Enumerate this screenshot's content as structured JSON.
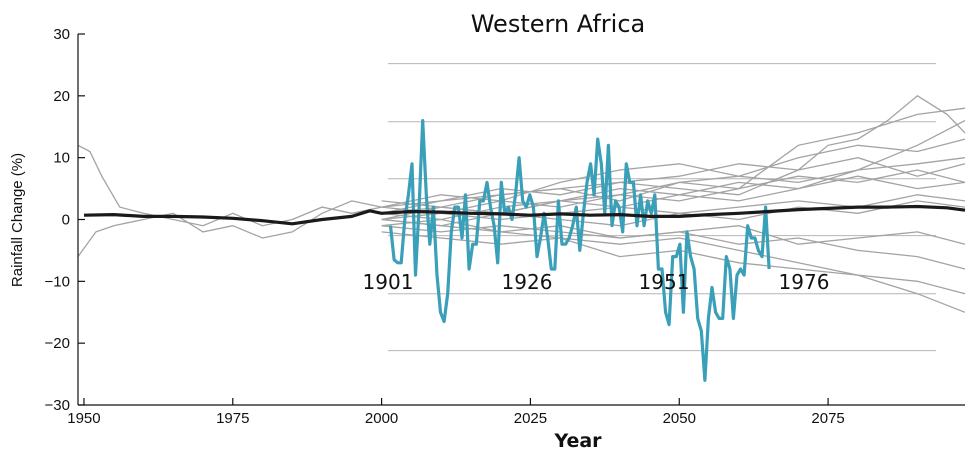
{
  "chart_data": {
    "type": "line",
    "title": "Western Africa",
    "xlabel": "Year",
    "ylabel": "Rainfall Change (%)",
    "xlim": [
      1949,
      2098
    ],
    "ylim": [
      -30,
      30
    ],
    "x_ticks": [
      1950,
      1975,
      2000,
      2025,
      2050,
      2075
    ],
    "y_ticks": [
      30,
      20,
      10,
      0,
      -10,
      -20,
      -30
    ],
    "x_tick_labels": [
      "1950",
      "1975",
      "2000",
      "2025",
      "2050",
      "2075"
    ],
    "y_tick_labels": [
      "30",
      "20",
      "10",
      "0",
      "−10",
      "−20",
      "−30"
    ],
    "observed_axis_labels": [
      "1901",
      "1926",
      "1951",
      "1976"
    ],
    "observed_gridlines_y": [
      25.2,
      15.8,
      6.6,
      -2.6,
      -12.0,
      -21.2
    ],
    "colors": {
      "model": "#a3a3a3",
      "mean": "#1a1a1a",
      "observed": "#3a9fb8",
      "grid": "#b5b5b5",
      "axis": "#111111"
    },
    "series": [
      {
        "name": "",
        "role": "observed",
        "x_start": 2001.5,
        "x_step": 0.6,
        "values": [
          -1,
          -6.5,
          -7,
          -7,
          0,
          4,
          9,
          -9,
          2,
          16,
          4,
          -4,
          2,
          -9,
          -15,
          -16.5,
          -12,
          -2,
          2,
          2,
          -3,
          4,
          -8,
          -4,
          -4,
          3,
          3,
          6,
          2,
          -1,
          -7,
          6,
          1,
          2,
          0,
          4,
          10,
          3,
          2,
          4,
          2,
          -6,
          -3,
          1,
          -3,
          -8,
          -8,
          3,
          -4,
          -4,
          -3,
          -1,
          2,
          -5,
          1,
          6,
          9,
          4,
          13,
          9,
          1,
          12,
          -1,
          3,
          2,
          -2,
          9,
          6,
          6,
          -1,
          4,
          -1,
          3,
          1,
          4,
          -8,
          -8,
          -15,
          -17,
          -6,
          -6,
          -4,
          -15,
          -2,
          -6,
          -8,
          -16,
          -18,
          -26,
          -16,
          -11,
          -15,
          -16,
          -16,
          -6,
          -8,
          -16,
          -9,
          -8,
          -9,
          -1,
          -3,
          -3,
          -5,
          -6,
          2,
          -8
        ]
      },
      {
        "name": "",
        "role": "mean",
        "x": [
          1950,
          1955,
          1960,
          1965,
          1970,
          1975,
          1980,
          1985,
          1990,
          1995,
          1998,
          2000,
          2005,
          2010,
          2015,
          2020,
          2025,
          2030,
          2035,
          2040,
          2045,
          2050,
          2055,
          2060,
          2065,
          2070,
          2075,
          2080,
          2085,
          2090,
          2095,
          2098
        ],
        "values": [
          0.7,
          0.8,
          0.5,
          0.5,
          0.4,
          0.2,
          -0.2,
          -0.7,
          0,
          0.5,
          1.4,
          1,
          1.3,
          1.2,
          1,
          0.9,
          0.7,
          0.9,
          0.7,
          0.8,
          0.5,
          0.5,
          0.8,
          1,
          1.3,
          1.6,
          1.8,
          2,
          2,
          2.1,
          1.9,
          1.5
        ]
      }
    ],
    "model_runs": [
      {
        "x": [
          1949,
          1951,
          1953,
          1956,
          1960,
          1965,
          1970,
          1975,
          1980,
          1985,
          1990,
          1995,
          2000
        ],
        "values": [
          12,
          11,
          7,
          2,
          1,
          0,
          -1,
          1,
          -1,
          0,
          2,
          1,
          2
        ]
      },
      {
        "x": [
          1949,
          1952,
          1955,
          1960,
          1965,
          1970,
          1975,
          1980,
          1985,
          1990,
          1995,
          2000
        ],
        "values": [
          -6,
          -2,
          -1,
          0,
          1,
          -2,
          -1,
          -3,
          -2,
          1,
          3,
          2
        ]
      },
      {
        "x": [
          2000,
          2010,
          2020,
          2030,
          2040,
          2050,
          2060,
          2070,
          2075,
          2080,
          2085,
          2090,
          2095,
          2098
        ],
        "values": [
          2,
          3,
          4,
          5,
          6,
          5,
          4,
          8,
          12,
          13,
          16,
          20,
          17,
          14
        ]
      },
      {
        "x": [
          2000,
          2010,
          2020,
          2030,
          2040,
          2050,
          2060,
          2070,
          2080,
          2090,
          2098
        ],
        "values": [
          1,
          0,
          2,
          3,
          2,
          4,
          3,
          5,
          8,
          12,
          16
        ]
      },
      {
        "x": [
          2000,
          2010,
          2020,
          2030,
          2040,
          2050,
          2060,
          2070,
          2080,
          2090,
          2098
        ],
        "values": [
          0,
          -1,
          -2,
          -3,
          -4,
          -3,
          -5,
          -7,
          -9,
          -12,
          -15
        ]
      },
      {
        "x": [
          2000,
          2010,
          2020,
          2030,
          2040,
          2050,
          2060,
          2070,
          2080,
          2090,
          2098
        ],
        "values": [
          1,
          2,
          1,
          3,
          4,
          6,
          7,
          6,
          8,
          9,
          10
        ]
      },
      {
        "x": [
          2000,
          2010,
          2020,
          2030,
          2040,
          2050,
          2060,
          2070,
          2080,
          2090,
          2098
        ],
        "values": [
          -1,
          -2,
          -1,
          -2,
          -3,
          -2,
          -4,
          -3,
          -5,
          -6,
          -8
        ]
      },
      {
        "x": [
          2000,
          2010,
          2020,
          2030,
          2040,
          2050,
          2060,
          2070,
          2080,
          2090,
          2098
        ],
        "values": [
          2,
          4,
          3,
          6,
          8,
          9,
          7,
          10,
          12,
          11,
          13
        ]
      },
      {
        "x": [
          2000,
          2010,
          2020,
          2030,
          2040,
          2050,
          2060,
          2070,
          2080,
          2090,
          2098
        ],
        "values": [
          0,
          1,
          0,
          1,
          2,
          1,
          2,
          3,
          2,
          4,
          3
        ]
      },
      {
        "x": [
          2000,
          2010,
          2020,
          2030,
          2040,
          2050,
          2060,
          2070,
          2080,
          2090,
          2098
        ],
        "values": [
          -2,
          -3,
          -4,
          -3,
          -6,
          -5,
          -7,
          -8,
          -9,
          -10,
          -12
        ]
      },
      {
        "x": [
          2000,
          2010,
          2020,
          2030,
          2040,
          2050,
          2060,
          2070,
          2080,
          2090,
          2098
        ],
        "values": [
          1,
          3,
          5,
          4,
          6,
          7,
          9,
          8,
          10,
          7,
          9
        ]
      },
      {
        "x": [
          2000,
          2010,
          2020,
          2030,
          2040,
          2050,
          2060,
          2070,
          2080,
          2090,
          2098
        ],
        "values": [
          0,
          -1,
          1,
          0,
          -1,
          1,
          0,
          2,
          1,
          3,
          2
        ]
      },
      {
        "x": [
          2000,
          2010,
          2020,
          2030,
          2040,
          2050,
          2060,
          2070,
          2080,
          2090,
          2098
        ],
        "values": [
          3,
          2,
          4,
          5,
          3,
          6,
          5,
          7,
          6,
          8,
          6
        ]
      },
      {
        "x": [
          2000,
          2010,
          2020,
          2030,
          2040,
          2050,
          2060,
          2070,
          2080,
          2090,
          2098
        ],
        "values": [
          -1,
          0,
          -2,
          -1,
          -3,
          -2,
          -1,
          -4,
          -3,
          -2,
          -4
        ]
      },
      {
        "x": [
          2000,
          2010,
          2020,
          2030,
          2040,
          2050,
          2060,
          2070,
          2080,
          2090,
          2098
        ],
        "values": [
          2,
          1,
          3,
          2,
          4,
          3,
          5,
          12,
          14,
          17,
          18
        ]
      },
      {
        "x": [
          2000,
          2010,
          2020,
          2030,
          2040,
          2050,
          2060,
          2070,
          2080,
          2090,
          2098
        ],
        "values": [
          0,
          2,
          1,
          3,
          5,
          4,
          6,
          5,
          7,
          5,
          6
        ]
      }
    ]
  }
}
